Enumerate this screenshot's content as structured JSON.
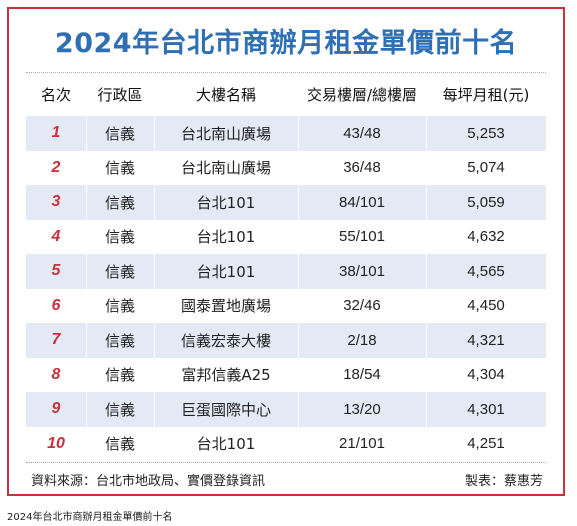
{
  "title": "2024年台北市商辦月租金單價前十名",
  "table": {
    "headers": [
      "名次",
      "行政區",
      "大樓名稱",
      "交易樓層/總樓層",
      "每坪月租(元)"
    ],
    "rows": [
      [
        "1",
        "信義",
        "台北南山廣場",
        "43/48",
        "5,253"
      ],
      [
        "2",
        "信義",
        "台北南山廣場",
        "36/48",
        "5,074"
      ],
      [
        "3",
        "信義",
        "台北101",
        "84/101",
        "5,059"
      ],
      [
        "4",
        "信義",
        "台北101",
        "55/101",
        "4,632"
      ],
      [
        "5",
        "信義",
        "台北101",
        "38/101",
        "4,565"
      ],
      [
        "6",
        "信義",
        "國泰置地廣場",
        "32/46",
        "4,450"
      ],
      [
        "7",
        "信義",
        "信義宏泰大樓",
        "2/18",
        "4,321"
      ],
      [
        "8",
        "信義",
        "富邦信義A25",
        "18/54",
        "4,304"
      ],
      [
        "9",
        "信義",
        "巨蛋國際中心",
        "13/20",
        "4,301"
      ],
      [
        "10",
        "信義",
        "台北101",
        "21/101",
        "4,251"
      ]
    ]
  },
  "footer": {
    "source": "資料來源：台北市地政局、實價登錄資訊",
    "credit": "製表：蔡惠芳"
  },
  "caption": "2024年台北市商辦月租金單價前十名",
  "colors": {
    "title": "#2f6fb4",
    "rank": "#c8323c",
    "border": "#c8323c",
    "stripe": "#e3eaf5"
  }
}
